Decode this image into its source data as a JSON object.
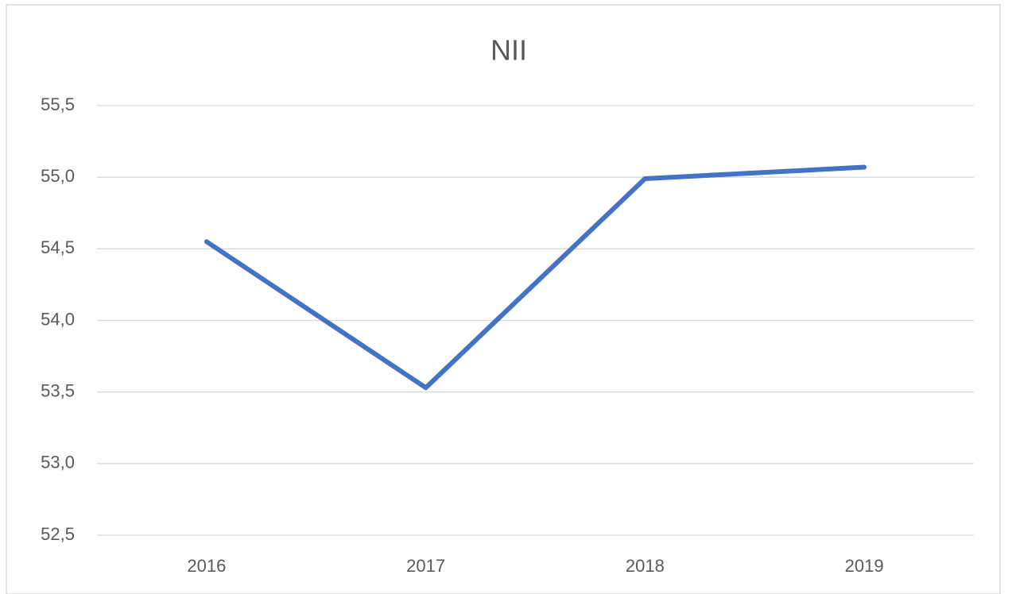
{
  "chart_data": {
    "type": "line",
    "title": "NII",
    "categories": [
      "2016",
      "2017",
      "2018",
      "2019"
    ],
    "series": [
      {
        "name": "NII",
        "color": "#4472c4",
        "values": [
          54.55,
          53.53,
          54.99,
          55.07
        ]
      }
    ],
    "ylim": [
      52.5,
      55.5
    ],
    "yticks": [
      {
        "value": 52.5,
        "label": "52,5"
      },
      {
        "value": 53,
        "label": "53,0"
      },
      {
        "value": 53.5,
        "label": "53,5"
      },
      {
        "value": 54,
        "label": "54,0"
      },
      {
        "value": 54.5,
        "label": "54,5"
      },
      {
        "value": 55,
        "label": "55,0"
      },
      {
        "value": 55.5,
        "label": "55,5"
      }
    ],
    "grid": true
  }
}
